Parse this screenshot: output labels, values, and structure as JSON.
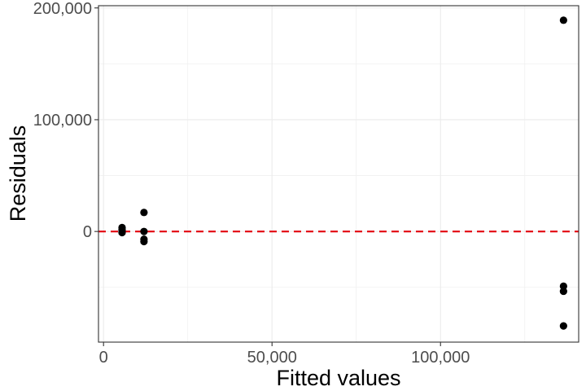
{
  "chart_data": {
    "type": "scatter",
    "xlabel": "Fitted values",
    "ylabel": "Residuals",
    "xlim": [
      -1500,
      141000
    ],
    "ylim": [
      -99000,
      202000
    ],
    "x_ticks": [
      {
        "value": 0,
        "label": "0"
      },
      {
        "value": 50000,
        "label": "50,000"
      },
      {
        "value": 100000,
        "label": "100,000"
      }
    ],
    "y_ticks": [
      {
        "value": 0,
        "label": "0"
      },
      {
        "value": 100000,
        "label": "100,000"
      },
      {
        "value": 200000,
        "label": "200,000"
      }
    ],
    "x_minor": [
      25000,
      75000,
      125000
    ],
    "y_minor": [
      -50000,
      50000,
      150000
    ],
    "reference_line": {
      "y": 0,
      "style": "dashed",
      "color": "#e3000f"
    },
    "grid": true,
    "point_color": "#000000",
    "points": [
      {
        "x": 5500,
        "y": 3500
      },
      {
        "x": 5500,
        "y": 1500
      },
      {
        "x": 5500,
        "y": -1000
      },
      {
        "x": 5500,
        "y": -500
      },
      {
        "x": 12000,
        "y": 17000
      },
      {
        "x": 12000,
        "y": 0
      },
      {
        "x": 12000,
        "y": -7000
      },
      {
        "x": 12000,
        "y": -9000
      },
      {
        "x": 136500,
        "y": 189000
      },
      {
        "x": 136500,
        "y": -49000
      },
      {
        "x": 136500,
        "y": -53500
      },
      {
        "x": 136500,
        "y": -84500
      }
    ]
  }
}
